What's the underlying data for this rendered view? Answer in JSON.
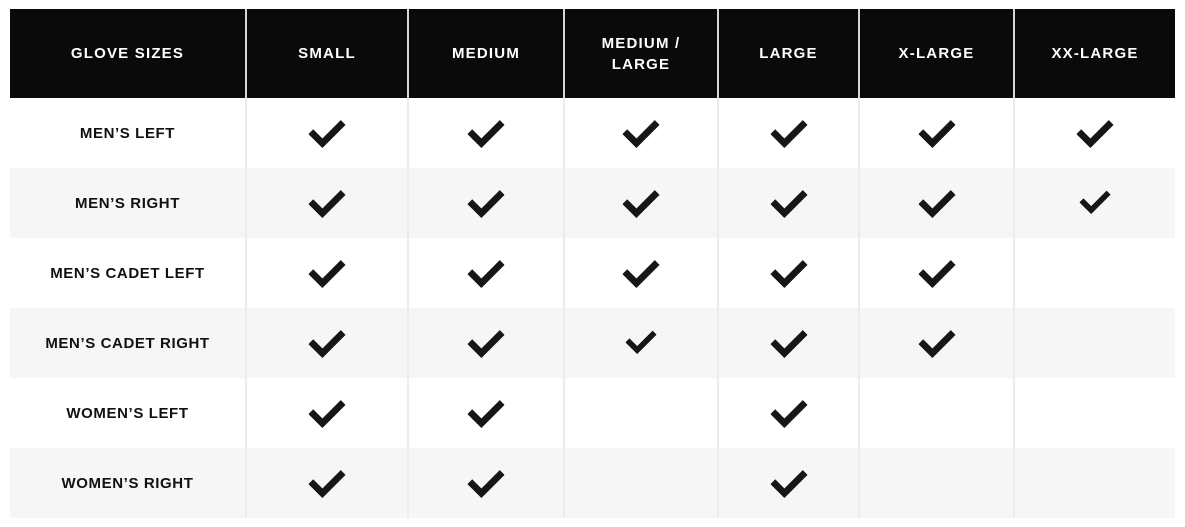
{
  "chart_data": {
    "type": "table",
    "title": "GLOVE SIZES",
    "columns": [
      "GLOVE SIZES",
      "SMALL",
      "MEDIUM",
      "MEDIUM / LARGE",
      "LARGE",
      "X-LARGE",
      "XX-LARGE"
    ],
    "size_columns": [
      "SMALL",
      "MEDIUM",
      "MEDIUM / LARGE",
      "LARGE",
      "X-LARGE",
      "XX-LARGE"
    ],
    "rows": [
      {
        "label": "MEN’S LEFT",
        "cells": [
          "check",
          "check",
          "check",
          "check",
          "check",
          "check"
        ]
      },
      {
        "label": "MEN’S RIGHT",
        "cells": [
          "check",
          "check",
          "check",
          "check",
          "check",
          "check-small"
        ]
      },
      {
        "label": "MEN’S CADET LEFT",
        "cells": [
          "check",
          "check",
          "check",
          "check",
          "check",
          ""
        ]
      },
      {
        "label": "MEN’S CADET RIGHT",
        "cells": [
          "check",
          "check",
          "check-small",
          "check",
          "check",
          ""
        ]
      },
      {
        "label": "WOMEN’S LEFT",
        "cells": [
          "check",
          "check",
          "",
          "check",
          "",
          ""
        ]
      },
      {
        "label": "WOMEN’S RIGHT",
        "cells": [
          "check",
          "check",
          "",
          "check",
          "",
          ""
        ]
      }
    ],
    "cell_value_meaning": {
      "check": "size available",
      "": "size not available"
    },
    "layout": {
      "header_style": "black bar, white uppercase text",
      "row_striping": "white / light gray"
    }
  },
  "icons": {
    "check": "check-icon"
  },
  "colors": {
    "header_bg": "#0a0a0a",
    "header_text": "#ffffff",
    "row_bg": "#ffffff",
    "row_alt_bg": "#f6f6f6",
    "check": "#161616",
    "divider_header": "#d6d6d6",
    "divider_body": "#ececec",
    "label_text": "#111111"
  }
}
